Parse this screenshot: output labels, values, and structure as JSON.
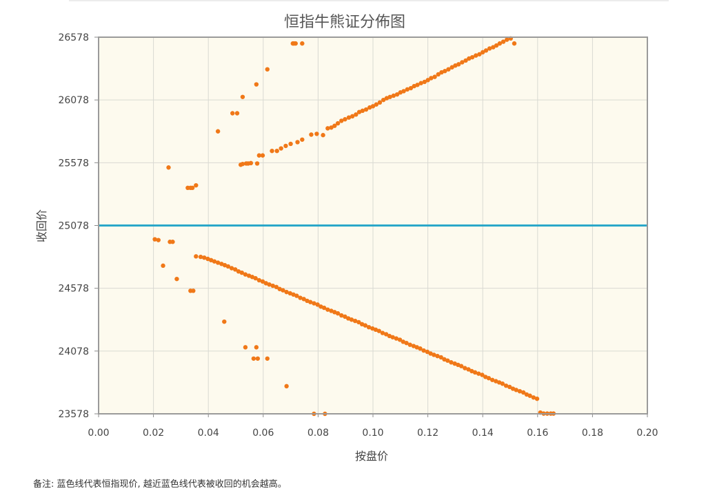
{
  "chart_data": {
    "type": "scatter",
    "title": "恒指牛熊证分佈图",
    "xlabel": "按盘价",
    "ylabel": "收回价",
    "xlim": [
      0,
      0.2
    ],
    "ylim": [
      23578,
      26578
    ],
    "xticks": [
      "0.00",
      "0.02",
      "0.04",
      "0.06",
      "0.08",
      "0.10",
      "0.12",
      "0.14",
      "0.16",
      "0.18",
      "0.20"
    ],
    "yticks": [
      "23578",
      "24078",
      "24578",
      "25078",
      "25578",
      "26078",
      "26578"
    ],
    "grid": true,
    "reference_line": {
      "y": 25078,
      "color": "#2aa7c9"
    },
    "point_color": "#f07818",
    "plot_background": "#fdfaee",
    "series": [
      {
        "values": [
          [
            0.0708,
            26528
          ],
          [
            0.0712,
            26528
          ],
          [
            0.0718,
            26528
          ],
          [
            0.0742,
            26528
          ],
          [
            0.0615,
            26322
          ],
          [
            0.0575,
            26202
          ],
          [
            0.0525,
            26102
          ],
          [
            0.0505,
            25972
          ],
          [
            0.0488,
            25972
          ],
          [
            0.0435,
            25828
          ],
          [
            0.0255,
            25540
          ],
          [
            0.0355,
            25398
          ],
          [
            0.0342,
            25378
          ],
          [
            0.0335,
            25378
          ],
          [
            0.0325,
            25378
          ],
          [
            0.0518,
            25562
          ],
          [
            0.0525,
            25568
          ],
          [
            0.0538,
            25572
          ],
          [
            0.0545,
            25572
          ],
          [
            0.0555,
            25575
          ],
          [
            0.0578,
            25572
          ],
          [
            0.0585,
            25636
          ],
          [
            0.0598,
            25636
          ],
          [
            0.0632,
            25672
          ],
          [
            0.065,
            25672
          ],
          [
            0.0665,
            25692
          ],
          [
            0.0682,
            25712
          ],
          [
            0.07,
            25728
          ],
          [
            0.0725,
            25742
          ],
          [
            0.0742,
            25762
          ],
          [
            0.0775,
            25802
          ],
          [
            0.0795,
            25808
          ],
          [
            0.0818,
            25798
          ],
          [
            0.0835,
            25852
          ],
          [
            0.0848,
            25858
          ],
          [
            0.086,
            25872
          ],
          [
            0.0872,
            25892
          ],
          [
            0.0885,
            25912
          ],
          [
            0.0898,
            25924
          ],
          [
            0.0912,
            25938
          ],
          [
            0.0925,
            25948
          ],
          [
            0.0938,
            25962
          ],
          [
            0.095,
            25982
          ],
          [
            0.0962,
            25992
          ],
          [
            0.0975,
            26002
          ],
          [
            0.0988,
            26018
          ],
          [
            0.1,
            26028
          ],
          [
            0.1012,
            26042
          ],
          [
            0.1025,
            26058
          ],
          [
            0.1038,
            26078
          ],
          [
            0.105,
            26092
          ],
          [
            0.1062,
            26102
          ],
          [
            0.1075,
            26112
          ],
          [
            0.1088,
            26122
          ],
          [
            0.11,
            26138
          ],
          [
            0.1112,
            26148
          ],
          [
            0.1125,
            26162
          ],
          [
            0.1138,
            26172
          ],
          [
            0.115,
            26188
          ],
          [
            0.1162,
            26198
          ],
          [
            0.1175,
            26212
          ],
          [
            0.1188,
            26222
          ],
          [
            0.12,
            26236
          ],
          [
            0.1212,
            26252
          ],
          [
            0.1225,
            26262
          ],
          [
            0.1238,
            26282
          ],
          [
            0.125,
            26298
          ],
          [
            0.1262,
            26308
          ],
          [
            0.1275,
            26322
          ],
          [
            0.1288,
            26338
          ],
          [
            0.13,
            26352
          ],
          [
            0.1312,
            26362
          ],
          [
            0.1325,
            26378
          ],
          [
            0.1338,
            26392
          ],
          [
            0.135,
            26408
          ],
          [
            0.1362,
            26418
          ],
          [
            0.1375,
            26432
          ],
          [
            0.1388,
            26442
          ],
          [
            0.14,
            26458
          ],
          [
            0.1412,
            26472
          ],
          [
            0.1425,
            26488
          ],
          [
            0.1438,
            26498
          ],
          [
            0.145,
            26512
          ],
          [
            0.1462,
            26528
          ],
          [
            0.1475,
            26542
          ],
          [
            0.1488,
            26558
          ],
          [
            0.1502,
            26568
          ],
          [
            0.1515,
            26528
          ],
          [
            0.0205,
            24968
          ],
          [
            0.0218,
            24962
          ],
          [
            0.026,
            24948
          ],
          [
            0.027,
            24948
          ],
          [
            0.0235,
            24758
          ],
          [
            0.0285,
            24652
          ],
          [
            0.0335,
            24558
          ],
          [
            0.0345,
            24558
          ],
          [
            0.0458,
            24312
          ],
          [
            0.0535,
            24108
          ],
          [
            0.0575,
            24108
          ],
          [
            0.0565,
            24018
          ],
          [
            0.058,
            24018
          ],
          [
            0.0615,
            24018
          ],
          [
            0.0685,
            23798
          ],
          [
            0.0785,
            23578
          ],
          [
            0.0825,
            23578
          ],
          [
            0.0355,
            24832
          ],
          [
            0.0372,
            24828
          ],
          [
            0.0385,
            24822
          ],
          [
            0.0398,
            24812
          ],
          [
            0.041,
            24802
          ],
          [
            0.0422,
            24792
          ],
          [
            0.0435,
            24782
          ],
          [
            0.0448,
            24772
          ],
          [
            0.046,
            24762
          ],
          [
            0.0472,
            24752
          ],
          [
            0.0485,
            24738
          ],
          [
            0.0498,
            24728
          ],
          [
            0.051,
            24712
          ],
          [
            0.0522,
            24702
          ],
          [
            0.0535,
            24688
          ],
          [
            0.0548,
            24678
          ],
          [
            0.056,
            24668
          ],
          [
            0.0572,
            24658
          ],
          [
            0.0585,
            24642
          ],
          [
            0.0598,
            24632
          ],
          [
            0.061,
            24618
          ],
          [
            0.0622,
            24608
          ],
          [
            0.0635,
            24598
          ],
          [
            0.0648,
            24588
          ],
          [
            0.066,
            24572
          ],
          [
            0.0672,
            24562
          ],
          [
            0.0685,
            24548
          ],
          [
            0.0698,
            24538
          ],
          [
            0.071,
            24528
          ],
          [
            0.0722,
            24518
          ],
          [
            0.0735,
            24502
          ],
          [
            0.0748,
            24492
          ],
          [
            0.076,
            24478
          ],
          [
            0.0772,
            24468
          ],
          [
            0.0785,
            24458
          ],
          [
            0.0798,
            24448
          ],
          [
            0.081,
            24432
          ],
          [
            0.0822,
            24422
          ],
          [
            0.0835,
            24408
          ],
          [
            0.0848,
            24398
          ],
          [
            0.086,
            24388
          ],
          [
            0.0872,
            24378
          ],
          [
            0.0885,
            24362
          ],
          [
            0.0898,
            24352
          ],
          [
            0.091,
            24338
          ],
          [
            0.0922,
            24328
          ],
          [
            0.0935,
            24318
          ],
          [
            0.0948,
            24308
          ],
          [
            0.096,
            24292
          ],
          [
            0.0972,
            24282
          ],
          [
            0.0985,
            24268
          ],
          [
            0.0998,
            24258
          ],
          [
            0.101,
            24248
          ],
          [
            0.1022,
            24238
          ],
          [
            0.1035,
            24222
          ],
          [
            0.1048,
            24212
          ],
          [
            0.106,
            24198
          ],
          [
            0.1072,
            24188
          ],
          [
            0.1085,
            24178
          ],
          [
            0.1098,
            24168
          ],
          [
            0.111,
            24152
          ],
          [
            0.1122,
            24142
          ],
          [
            0.1135,
            24128
          ],
          [
            0.1148,
            24118
          ],
          [
            0.116,
            24108
          ],
          [
            0.1172,
            24098
          ],
          [
            0.1185,
            24082
          ],
          [
            0.1198,
            24072
          ],
          [
            0.121,
            24058
          ],
          [
            0.1222,
            24048
          ],
          [
            0.1235,
            24038
          ],
          [
            0.1248,
            24028
          ],
          [
            0.126,
            24012
          ],
          [
            0.1272,
            24002
          ],
          [
            0.1285,
            23988
          ],
          [
            0.1298,
            23978
          ],
          [
            0.131,
            23968
          ],
          [
            0.1322,
            23958
          ],
          [
            0.1335,
            23942
          ],
          [
            0.1348,
            23932
          ],
          [
            0.136,
            23918
          ],
          [
            0.1372,
            23908
          ],
          [
            0.1385,
            23898
          ],
          [
            0.1398,
            23888
          ],
          [
            0.141,
            23872
          ],
          [
            0.1422,
            23862
          ],
          [
            0.1435,
            23848
          ],
          [
            0.1448,
            23838
          ],
          [
            0.146,
            23828
          ],
          [
            0.1472,
            23818
          ],
          [
            0.1485,
            23802
          ],
          [
            0.1498,
            23792
          ],
          [
            0.151,
            23778
          ],
          [
            0.1522,
            23768
          ],
          [
            0.1535,
            23758
          ],
          [
            0.1548,
            23748
          ],
          [
            0.156,
            23732
          ],
          [
            0.1572,
            23722
          ],
          [
            0.1585,
            23708
          ],
          [
            0.1598,
            23698
          ],
          [
            0.161,
            23588
          ],
          [
            0.1622,
            23580
          ],
          [
            0.1635,
            23580
          ],
          [
            0.1648,
            23580
          ],
          [
            0.1658,
            23580
          ]
        ]
      }
    ]
  },
  "note": "备注:  蓝色线代表恒指现价, 越近蓝色线代表被收回的机会越高。"
}
